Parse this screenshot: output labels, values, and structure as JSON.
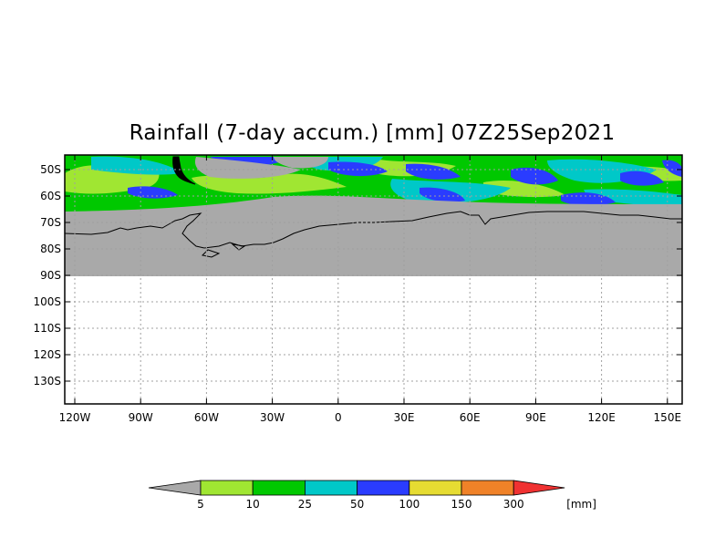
{
  "title": "Rainfall (7-day accum.) [mm] 07Z25Sep2021",
  "map": {
    "y_ticks": [
      "50S",
      "60S",
      "70S",
      "80S",
      "90S",
      "100S",
      "110S",
      "120S",
      "130S"
    ],
    "x_ticks": [
      "120W",
      "90W",
      "60W",
      "30W",
      "0",
      "30E",
      "60E",
      "90E",
      "120E",
      "150E"
    ],
    "gridlines": true
  },
  "legend": {
    "unit": "[mm]",
    "ticks": [
      "5",
      "10",
      "25",
      "50",
      "100",
      "150",
      "300"
    ],
    "colors": [
      "#a9a9a9",
      "#a0e632",
      "#00c800",
      "#00c8c8",
      "#2a3cff",
      "#e6dc32",
      "#f08228",
      "#f03232"
    ]
  }
}
